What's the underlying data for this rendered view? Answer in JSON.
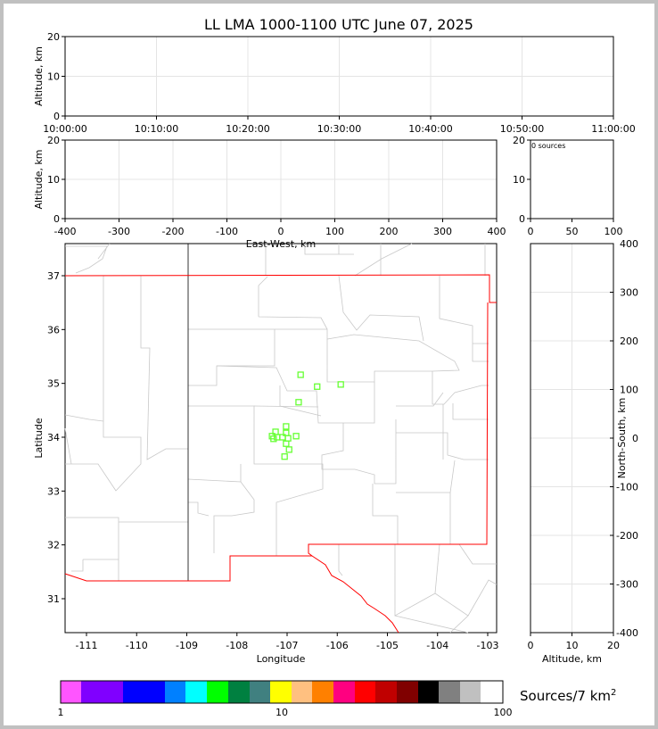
{
  "title": "LL LMA 1000-1100 UTC June 07, 2025",
  "chart_data": [
    {
      "panel": "time-altitude",
      "type": "scatter",
      "ylabel": "Altitude, km",
      "ylim": [
        0,
        20
      ],
      "yticks": [
        "0",
        "10",
        "20"
      ],
      "xticks": [
        "10:00:00",
        "10:10:00",
        "10:20:00",
        "10:30:00",
        "10:40:00",
        "10:50:00",
        "11:00:00"
      ],
      "grid": true,
      "points": []
    },
    {
      "panel": "east-west-altitude",
      "type": "scatter",
      "xlabel": "East-West, km",
      "ylabel": "Altitude, km",
      "xlim": [
        -400,
        400
      ],
      "ylim": [
        0,
        20
      ],
      "xticks": [
        "-400",
        "-300",
        "-200",
        "-100",
        "0",
        "100",
        "200",
        "300",
        "400"
      ],
      "yticks": [
        "0",
        "10",
        "20"
      ],
      "grid": true,
      "points": []
    },
    {
      "panel": "altitude-histogram",
      "type": "bar",
      "annotation": "0 sources",
      "xlim": [
        0,
        100
      ],
      "ylim": [
        0,
        20
      ],
      "xticks": [
        "0",
        "50",
        "100"
      ],
      "yticks": [
        "0",
        "10",
        "20"
      ],
      "values": []
    },
    {
      "panel": "plan-view",
      "type": "scatter",
      "xlabel": "Longitude",
      "ylabel": "Latitude",
      "xlim": [
        -111.5,
        -102.9
      ],
      "ylim": [
        30.4,
        37.6
      ],
      "xticks": [
        "-111",
        "-110",
        "-109",
        "-108",
        "-107",
        "-106",
        "-105",
        "-104",
        "-103"
      ],
      "yticks": [
        "31",
        "32",
        "33",
        "34",
        "35",
        "36",
        "37"
      ],
      "marker_color": "#66ff33",
      "points": [
        [
          -106.73,
          35.16
        ],
        [
          -106.4,
          34.94
        ],
        [
          -105.93,
          34.98
        ],
        [
          -106.77,
          34.65
        ],
        [
          -107.02,
          34.2
        ],
        [
          -107.02,
          34.08
        ],
        [
          -107.23,
          34.1
        ],
        [
          -107.3,
          34.02
        ],
        [
          -107.2,
          34.0
        ],
        [
          -107.09,
          34.0
        ],
        [
          -106.98,
          33.98
        ],
        [
          -106.82,
          34.02
        ],
        [
          -107.27,
          33.97
        ],
        [
          -107.02,
          33.88
        ],
        [
          -106.96,
          33.77
        ],
        [
          -107.05,
          33.64
        ]
      ]
    },
    {
      "panel": "altitude-north-south",
      "type": "scatter",
      "xlabel": "Altitude, km",
      "ylabel": "North-South, km",
      "xlim": [
        0,
        20
      ],
      "ylim": [
        -400,
        400
      ],
      "xticks": [
        "0",
        "10",
        "20"
      ],
      "yticks": [
        "400",
        "300",
        "200",
        "100",
        "0",
        "-100",
        "-200",
        "-300",
        "-400"
      ],
      "grid": true,
      "points": []
    }
  ],
  "colorbar": {
    "label": "Sources/7 km",
    "label_sup": "2",
    "scale": "log",
    "ticks": [
      "1",
      "10",
      "100"
    ],
    "colors": [
      "#ff55ff",
      "#8000ff",
      "#0000ff",
      "#0080ff",
      "#00ffff",
      "#00ff00",
      "#008040",
      "#408080",
      "#ffff00",
      "#ffc080",
      "#ff8000",
      "#ff0080",
      "#ff0000",
      "#c00000",
      "#800000",
      "#000000",
      "#808080",
      "#c0c0c0",
      "#ffffff"
    ]
  }
}
